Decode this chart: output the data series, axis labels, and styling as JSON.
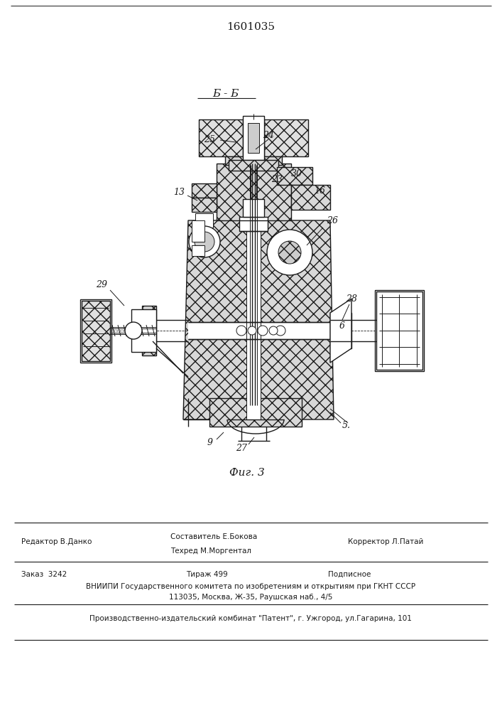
{
  "patent_number": "1601035",
  "section_label": "Б - Б",
  "figure_label": "Фиг. 3",
  "line_color": "#1a1a1a",
  "footer": {
    "editor": "Редактор В.Данко",
    "composer_line1": "Составитель Е.Бокова",
    "composer_line2": "Техред М.Моргентал",
    "corrector": "Корректор Л.Патай",
    "order": "Заказ  3242",
    "circulation": "Тираж 499",
    "subscription": "Подписное",
    "vniiipi_line1": "ВНИИПИ Государственного комитета по изобретениям и открытиям при ГКНТ СССР",
    "vniiipi_line2": "113035, Москва, Ж-35, Раушская наб., 4/5",
    "production": "Производственно-издательский комбинат \"Патент\", г. Ужгород, ул.Гагарина, 101"
  }
}
